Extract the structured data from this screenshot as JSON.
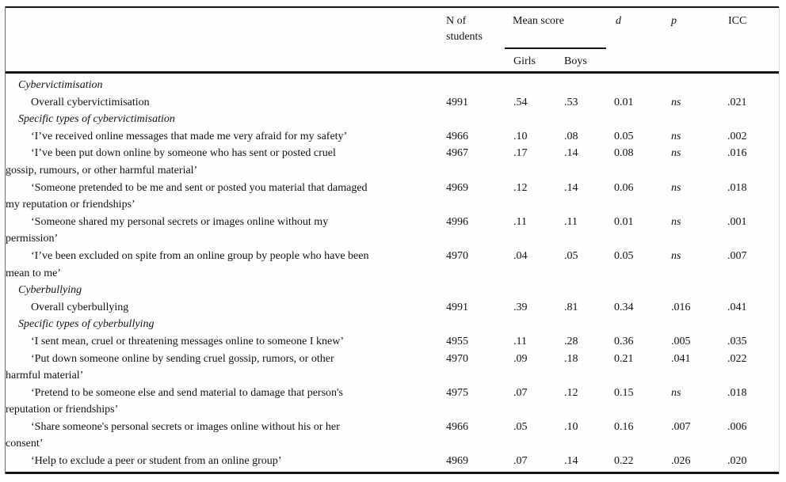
{
  "table": {
    "header": {
      "n_students": "N of students",
      "mean_score": "Mean score",
      "girls": "Girls",
      "boys": "Boys",
      "d": "d",
      "p": "p",
      "icc": "ICC"
    },
    "rows": [
      {
        "type": "section",
        "label": "Cybervictimisation"
      },
      {
        "type": "item",
        "label": "Overall cybervictimisation",
        "n": "4991",
        "girls": ".54",
        "boys": ".53",
        "d": "0.01",
        "p": "ns",
        "icc": ".021"
      },
      {
        "type": "section",
        "label": "Specific types of cybervictimisation"
      },
      {
        "type": "item",
        "label": "‘I’ve received online messages that made me very afraid for my safety’",
        "n": "4966",
        "girls": ".10",
        "boys": ".08",
        "d": "0.05",
        "p": "ns",
        "icc": ".002"
      },
      {
        "type": "item",
        "label": "‘I’ve been put down online by someone who has sent or posted cruel\ngossip, rumours, or other harmful material’",
        "n": "4967",
        "girls": ".17",
        "boys": ".14",
        "d": "0.08",
        "p": "ns",
        "icc": ".016"
      },
      {
        "type": "item",
        "label": "‘Someone pretended to be me and sent or posted you material that damaged\nmy reputation or friendships’",
        "n": "4969",
        "girls": ".12",
        "boys": ".14",
        "d": "0.06",
        "p": "ns",
        "icc": ".018"
      },
      {
        "type": "item",
        "label": "‘Someone shared my personal secrets or images online without my\npermission’",
        "n": "4996",
        "girls": ".11",
        "boys": ".11",
        "d": "0.01",
        "p": "ns",
        "icc": ".001"
      },
      {
        "type": "item",
        "label": "‘I’ve been excluded on spite from an online group by people who have been\nmean to me’",
        "n": "4970",
        "girls": ".04",
        "boys": ".05",
        "d": "0.05",
        "p": "ns",
        "icc": ".007"
      },
      {
        "type": "section",
        "label": "Cyberbullying"
      },
      {
        "type": "item",
        "label": "Overall cyberbullying",
        "n": "4991",
        "girls": ".39",
        "boys": ".81",
        "d": "0.34",
        "p": ".016",
        "icc": ".041"
      },
      {
        "type": "section",
        "label": "Specific types of cyberbullying"
      },
      {
        "type": "item",
        "label": "‘I sent mean, cruel or threatening messages online to someone I knew’",
        "n": "4955",
        "girls": ".11",
        "boys": ".28",
        "d": "0.36",
        "p": ".005",
        "icc": ".035"
      },
      {
        "type": "item",
        "label": "‘Put down someone online by sending cruel gossip, rumors, or other\nharmful material’",
        "n": "4970",
        "girls": ".09",
        "boys": ".18",
        "d": "0.21",
        "p": ".041",
        "icc": ".022"
      },
      {
        "type": "item",
        "label": "‘Pretend to be someone else and send material to damage that person's\nreputation or friendships’",
        "n": "4975",
        "girls": ".07",
        "boys": ".12",
        "d": "0.15",
        "p": "ns",
        "icc": ".018"
      },
      {
        "type": "item",
        "label": "‘Share someone's personal secrets or images online without his or her\nconsent’",
        "n": "4966",
        "girls": ".05",
        "boys": ".10",
        "d": "0.16",
        "p": ".007",
        "icc": ".006"
      },
      {
        "type": "item",
        "label": "‘Help to exclude a peer or student from an online group’",
        "n": "4969",
        "girls": ".07",
        "boys": ".14",
        "d": "0.22",
        "p": ".026",
        "icc": ".020"
      }
    ]
  }
}
